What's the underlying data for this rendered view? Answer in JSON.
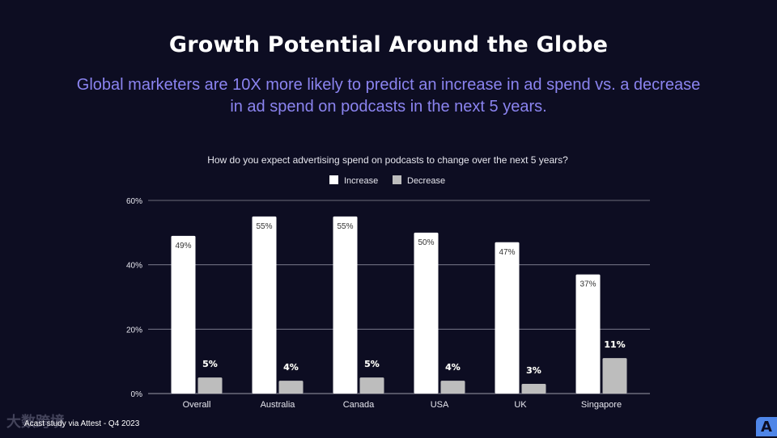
{
  "slide": {
    "title": "Growth Potential Around the Globe",
    "subtitle": "Global marketers are 10X more likely to predict an increase in ad spend vs. a decrease in ad spend on podcasts in the next 5 years.",
    "footnote": "Acast study via Attest - Q4 2023",
    "watermark": "大数跨境",
    "logo_letter": "A"
  },
  "colors": {
    "background": "#0d0d22",
    "increase": "#ffffff",
    "decrease": "#bdbdbd",
    "subtitle": "#8b84f0",
    "logo": "#4f86e8"
  },
  "chart_data": {
    "type": "bar",
    "title": "How do you expect advertising spend on podcasts to change over the next 5 years?",
    "categories": [
      "Overall",
      "Australia",
      "Canada",
      "USA",
      "UK",
      "Singapore"
    ],
    "series": [
      {
        "name": "Increase",
        "values": [
          49,
          55,
          55,
          50,
          47,
          37
        ],
        "labels": [
          "49%",
          "55%",
          "55%",
          "50%",
          "47%",
          "37%"
        ]
      },
      {
        "name": "Decrease",
        "values": [
          5,
          4,
          5,
          4,
          3,
          11
        ],
        "labels": [
          "5%",
          "4%",
          "5%",
          "4%",
          "3%",
          "11%"
        ]
      }
    ],
    "ylim": [
      0,
      60
    ],
    "yticks": [
      0,
      20,
      40,
      60
    ],
    "ytick_labels": [
      "0%",
      "20%",
      "40%",
      "60%"
    ],
    "legend_position": "top-center",
    "grid": true
  }
}
